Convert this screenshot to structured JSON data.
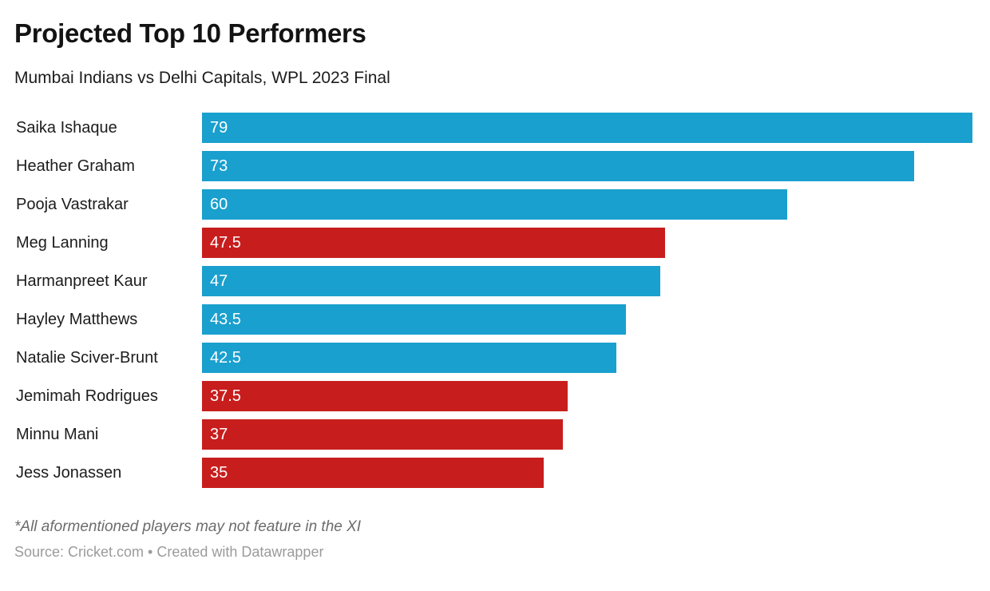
{
  "header": {
    "title": "Projected Top 10 Performers",
    "subtitle": "Mumbai Indians vs Delhi Capitals, WPL 2023 Final"
  },
  "chart_data": {
    "type": "bar",
    "orientation": "horizontal",
    "title": "Projected Top 10 Performers",
    "subtitle": "Mumbai Indians vs Delhi Capitals, WPL 2023 Final",
    "categories": [
      "Saika Ishaque",
      "Heather Graham",
      "Pooja Vastrakar",
      "Meg Lanning",
      "Harmanpreet Kaur",
      "Hayley Matthews",
      "Natalie Sciver-Brunt",
      "Jemimah Rodrigues",
      "Minnu Mani",
      "Jess Jonassen"
    ],
    "values": [
      79,
      73,
      60,
      47.5,
      47,
      43.5,
      42.5,
      37.5,
      37,
      35
    ],
    "bar_colors": [
      "#1aa0ce",
      "#1aa0ce",
      "#1aa0ce",
      "#c71e1d",
      "#1aa0ce",
      "#1aa0ce",
      "#1aa0ce",
      "#c71e1d",
      "#c71e1d",
      "#c71e1d"
    ],
    "color_key": {
      "blue": "#1aa0ce",
      "red": "#c71e1d"
    },
    "xlim": [
      0,
      79
    ],
    "grid": false,
    "legend": "none",
    "value_labels": "inside-start, white"
  },
  "footer": {
    "footnote": "*All aformentioned players may not feature in the XI",
    "source": "Source: Cricket.com • Created with Datawrapper"
  }
}
